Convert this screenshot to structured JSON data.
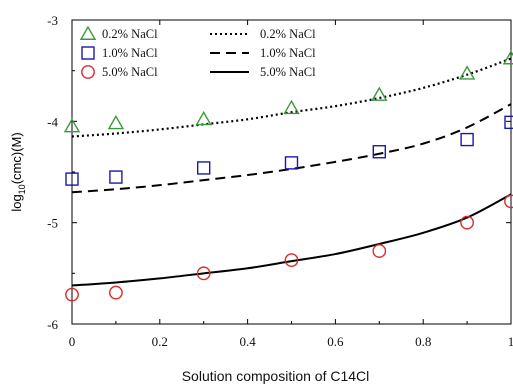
{
  "chart_data": {
    "type": "scatter",
    "title": "",
    "xlabel": "Solution composition of C14Cl",
    "ylabel_main": "log",
    "ylabel_sub": "10",
    "ylabel_rest": "(cmc)(M)",
    "xlim": [
      0,
      1
    ],
    "ylim": [
      -6,
      -3
    ],
    "x_ticks": [
      0,
      0.2,
      0.4,
      0.6,
      0.8,
      1
    ],
    "x_tick_labels": [
      "0",
      "0.2",
      "0.4",
      "0.6",
      "0.8",
      "1"
    ],
    "y_ticks": [
      -3,
      -4,
      -5,
      -6
    ],
    "y_tick_labels": [
      "-3",
      "-4",
      "-5",
      "-6"
    ],
    "grid": false,
    "legend_position": "top-left",
    "series": [
      {
        "name": "0.2% NaCl",
        "marker": "triangle",
        "color": "#3a9a3a",
        "x": [
          0,
          0.1,
          0.3,
          0.5,
          0.7,
          0.9,
          1.0
        ],
        "y": [
          -4.05,
          -4.02,
          -3.98,
          -3.87,
          -3.74,
          -3.53,
          -3.38
        ]
      },
      {
        "name": "1.0% NaCl",
        "marker": "square",
        "color": "#1a1aaa",
        "x": [
          0,
          0.1,
          0.3,
          0.5,
          0.7,
          0.9,
          1.0
        ],
        "y": [
          -4.57,
          -4.55,
          -4.46,
          -4.41,
          -4.3,
          -4.18,
          -4.01
        ]
      },
      {
        "name": "5.0% NaCl",
        "marker": "circle",
        "color": "#dd2a2a",
        "x": [
          0,
          0.1,
          0.3,
          0.5,
          0.7,
          0.9,
          1.0
        ],
        "y": [
          -5.71,
          -5.69,
          -5.5,
          -5.37,
          -5.28,
          -5.0,
          -4.79
        ]
      }
    ],
    "fit_lines": [
      {
        "name": "0.2% NaCl",
        "style": "dotted",
        "x": [
          0,
          0.1,
          0.2,
          0.3,
          0.4,
          0.5,
          0.6,
          0.7,
          0.8,
          0.9,
          1.0
        ],
        "y": [
          -4.15,
          -4.12,
          -4.08,
          -4.03,
          -3.98,
          -3.91,
          -3.85,
          -3.77,
          -3.67,
          -3.54,
          -3.38
        ]
      },
      {
        "name": "1.0% NaCl",
        "style": "dashed",
        "x": [
          0,
          0.1,
          0.2,
          0.3,
          0.4,
          0.5,
          0.6,
          0.7,
          0.8,
          0.9,
          1.0
        ],
        "y": [
          -4.7,
          -4.67,
          -4.63,
          -4.58,
          -4.53,
          -4.47,
          -4.4,
          -4.32,
          -4.22,
          -4.06,
          -3.83
        ]
      },
      {
        "name": "5.0% NaCl",
        "style": "solid",
        "x": [
          0,
          0.1,
          0.2,
          0.3,
          0.4,
          0.5,
          0.6,
          0.7,
          0.8,
          0.9,
          1.0
        ],
        "y": [
          -5.62,
          -5.59,
          -5.55,
          -5.5,
          -5.45,
          -5.38,
          -5.31,
          -5.21,
          -5.1,
          -4.95,
          -4.72
        ]
      }
    ]
  }
}
